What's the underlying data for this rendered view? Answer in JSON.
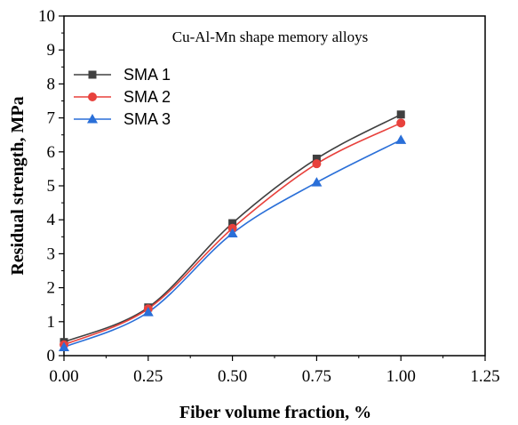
{
  "chart_data": {
    "type": "line",
    "annotation": "Cu-Al-Mn shape memory alloys",
    "xlabel": "Fiber volume fraction, %",
    "ylabel": "Residual strength, MPa",
    "xlim": [
      0,
      1.25
    ],
    "ylim": [
      0,
      10
    ],
    "x_ticks": [
      "0.00",
      "0.25",
      "0.50",
      "0.75",
      "1.00",
      "1.25"
    ],
    "y_ticks": [
      "0",
      "1",
      "2",
      "3",
      "4",
      "5",
      "6",
      "7",
      "8",
      "9",
      "10"
    ],
    "x": [
      0.0,
      0.25,
      0.5,
      0.75,
      1.0
    ],
    "legend_position": "top-left",
    "grid": false,
    "series": [
      {
        "name": "SMA 1",
        "marker": "square",
        "color": "#404040",
        "values": [
          0.4,
          1.42,
          3.9,
          5.8,
          7.1
        ]
      },
      {
        "name": "SMA 2",
        "marker": "circle",
        "color": "#e8413c",
        "values": [
          0.32,
          1.38,
          3.75,
          5.65,
          6.85
        ]
      },
      {
        "name": "SMA 3",
        "marker": "triangle",
        "color": "#2a6fd8",
        "values": [
          0.25,
          1.28,
          3.6,
          5.1,
          6.35
        ]
      }
    ]
  }
}
